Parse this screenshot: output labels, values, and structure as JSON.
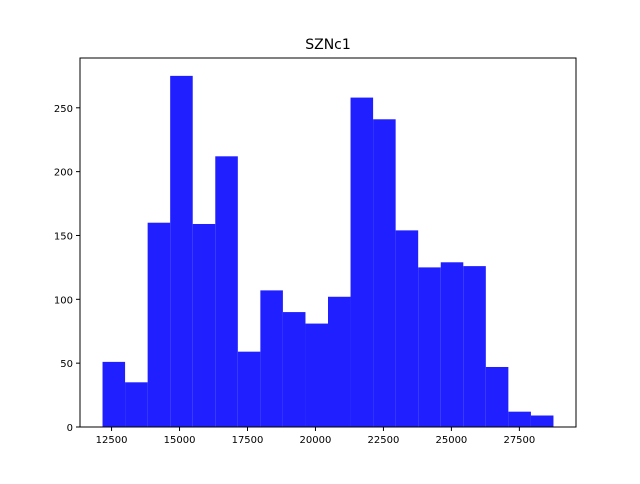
{
  "chart_data": {
    "type": "histogram",
    "title": "SZNc1",
    "bins": [
      12168,
      12997,
      13827,
      14656,
      15485,
      16315,
      17144,
      17973,
      18802,
      19632,
      20461,
      21290,
      22120,
      22949,
      23778,
      24608,
      25437,
      26266,
      27095,
      27925,
      28754
    ],
    "values": [
      51,
      35,
      160,
      275,
      159,
      212,
      59,
      107,
      90,
      81,
      102,
      258,
      241,
      154,
      125,
      129,
      126,
      47,
      12,
      9
    ],
    "color": "#1f1fff",
    "xlim": [
      11339,
      29583
    ],
    "xticks": [
      12500,
      15000,
      17500,
      20000,
      22500,
      25000,
      27500
    ],
    "ylim": [
      0,
      289
    ],
    "yticks": [
      0,
      50,
      100,
      150,
      200,
      250
    ]
  }
}
